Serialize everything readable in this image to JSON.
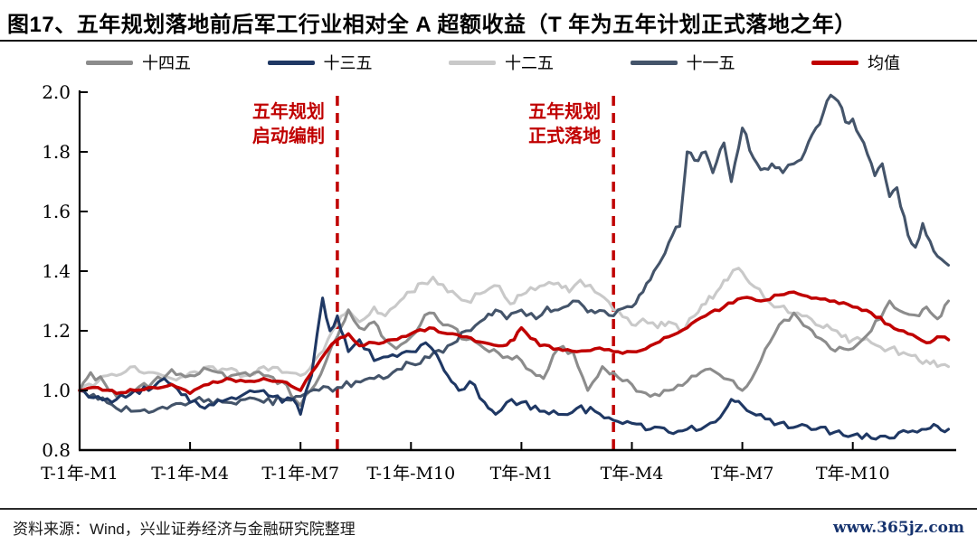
{
  "title": "图17、五年规划落地前后军工行业相对全 A 超额收益（T 年为五年计划正式落地之年）",
  "footer": {
    "source": "资料来源：Wind，兴业证券经济与金融研究院整理",
    "site": "www.365jz.com"
  },
  "legend": [
    {
      "label": "十四五",
      "color": "#8c8c8c"
    },
    {
      "label": "十三五",
      "color": "#1f3864"
    },
    {
      "label": "十二五",
      "color": "#c9c9c9"
    },
    {
      "label": "十一五",
      "color": "#44546a"
    },
    {
      "label": "均值",
      "color": "#c00000"
    }
  ],
  "chart_data": {
    "type": "line",
    "title": "",
    "xlabel": "",
    "ylabel": "",
    "ylim": [
      0.8,
      2.0
    ],
    "yticks": [
      "0.8",
      "1.0",
      "1.2",
      "1.4",
      "1.6",
      "1.8",
      "2.0"
    ],
    "x_unit": "month index: 1 = T-1年-M1, 13 = T年-M1, data spans ~24 months",
    "xticks": [
      {
        "m": 1,
        "label": "T-1年-M1"
      },
      {
        "m": 4,
        "label": "T-1年-M4"
      },
      {
        "m": 7,
        "label": "T-1年-M7"
      },
      {
        "m": 10,
        "label": "T-1年-M10"
      },
      {
        "m": 13,
        "label": "T年-M1"
      },
      {
        "m": 16,
        "label": "T年-M4"
      },
      {
        "m": 19,
        "label": "T年-M7"
      },
      {
        "m": 22,
        "label": "T年-M10"
      }
    ],
    "grid": false,
    "legend_position": "top",
    "event_lines": [
      {
        "month": 8.0,
        "color": "#c00000",
        "style": "dashed",
        "lines": [
          "五年规划",
          "启动编制"
        ]
      },
      {
        "month": 15.5,
        "color": "#c00000",
        "style": "dashed",
        "lines": [
          "五年规划",
          "正式落地"
        ]
      }
    ],
    "series": [
      {
        "name": "十二五",
        "key": "series-12th-5yp",
        "color": "#c9c9c9",
        "points": [
          [
            1,
            1.0
          ],
          [
            1.5,
            1.03
          ],
          [
            2,
            1.05
          ],
          [
            2.5,
            1.08
          ],
          [
            3,
            1.06
          ],
          [
            3.5,
            1.04
          ],
          [
            4,
            1.06
          ],
          [
            4.5,
            1.08
          ],
          [
            5,
            1.07
          ],
          [
            5.5,
            1.05
          ],
          [
            6,
            1.08
          ],
          [
            6.5,
            1.06
          ],
          [
            7,
            1.05
          ],
          [
            7.5,
            1.12
          ],
          [
            8,
            1.22
          ],
          [
            8.3,
            1.27
          ],
          [
            8.6,
            1.23
          ],
          [
            9,
            1.28
          ],
          [
            9.3,
            1.25
          ],
          [
            9.7,
            1.3
          ],
          [
            10,
            1.33
          ],
          [
            10.3,
            1.36
          ],
          [
            10.6,
            1.38
          ],
          [
            11,
            1.33
          ],
          [
            11.5,
            1.3
          ],
          [
            12,
            1.33
          ],
          [
            12.4,
            1.35
          ],
          [
            12.7,
            1.29
          ],
          [
            13,
            1.32
          ],
          [
            13.5,
            1.35
          ],
          [
            14,
            1.36
          ],
          [
            14.3,
            1.33
          ],
          [
            14.6,
            1.37
          ],
          [
            15,
            1.33
          ],
          [
            15.5,
            1.27
          ],
          [
            16,
            1.22
          ],
          [
            16.3,
            1.24
          ],
          [
            16.7,
            1.21
          ],
          [
            17,
            1.23
          ],
          [
            17.3,
            1.2
          ],
          [
            17.7,
            1.25
          ],
          [
            18,
            1.29
          ],
          [
            18.3,
            1.33
          ],
          [
            18.6,
            1.37
          ],
          [
            18.9,
            1.41
          ],
          [
            19.2,
            1.36
          ],
          [
            19.6,
            1.31
          ],
          [
            20,
            1.28
          ],
          [
            20.5,
            1.26
          ],
          [
            21,
            1.22
          ],
          [
            21.3,
            1.22
          ],
          [
            21.7,
            1.18
          ],
          [
            22,
            1.17
          ],
          [
            22.5,
            1.16
          ],
          [
            23,
            1.14
          ],
          [
            23.5,
            1.12
          ],
          [
            23.8,
            1.1
          ],
          [
            24,
            1.1
          ],
          [
            24.3,
            1.08
          ],
          [
            24.6,
            1.08
          ]
        ]
      },
      {
        "name": "十四五",
        "key": "series-14th-5yp",
        "color": "#8c8c8c",
        "points": [
          [
            1,
            1.0
          ],
          [
            1.3,
            1.06
          ],
          [
            1.7,
            1.02
          ],
          [
            2,
            0.98
          ],
          [
            2.5,
            1.0
          ],
          [
            3,
            1.03
          ],
          [
            3.5,
            1.07
          ],
          [
            4,
            1.05
          ],
          [
            4.5,
            1.07
          ],
          [
            5,
            1.04
          ],
          [
            5.5,
            1.06
          ],
          [
            6,
            1.05
          ],
          [
            6.5,
            1.03
          ],
          [
            7,
            0.95
          ],
          [
            7.4,
            1.02
          ],
          [
            7.7,
            1.1
          ],
          [
            8,
            1.18
          ],
          [
            8.3,
            1.27
          ],
          [
            8.6,
            1.21
          ],
          [
            9,
            1.23
          ],
          [
            9.3,
            1.17
          ],
          [
            9.6,
            1.14
          ],
          [
            10,
            1.18
          ],
          [
            10.5,
            1.26
          ],
          [
            11,
            1.22
          ],
          [
            11.5,
            1.17
          ],
          [
            12,
            1.14
          ],
          [
            12.5,
            1.11
          ],
          [
            13,
            1.1
          ],
          [
            13.4,
            1.05
          ],
          [
            13.6,
            1.04
          ],
          [
            14,
            1.14
          ],
          [
            14.4,
            1.13
          ],
          [
            14.8,
            1.0
          ],
          [
            15.2,
            1.08
          ],
          [
            15.5,
            1.06
          ],
          [
            16,
            1.02
          ],
          [
            16.5,
            0.98
          ],
          [
            17,
            1.0
          ],
          [
            17.5,
            1.03
          ],
          [
            18,
            1.07
          ],
          [
            18.5,
            1.04
          ],
          [
            19,
            1.0
          ],
          [
            19.5,
            1.1
          ],
          [
            20,
            1.22
          ],
          [
            20.4,
            1.26
          ],
          [
            20.8,
            1.21
          ],
          [
            21,
            1.18
          ],
          [
            21.4,
            1.14
          ],
          [
            22,
            1.14
          ],
          [
            22.5,
            1.2
          ],
          [
            23,
            1.3
          ],
          [
            23.4,
            1.26
          ],
          [
            23.8,
            1.25
          ],
          [
            24,
            1.28
          ],
          [
            24.3,
            1.24
          ],
          [
            24.6,
            1.3
          ]
        ]
      },
      {
        "name": "十一五",
        "key": "series-11th-5yp",
        "color": "#44546a",
        "points": [
          [
            1,
            1.0
          ],
          [
            1.5,
            0.97
          ],
          [
            2,
            0.94
          ],
          [
            2.4,
            0.93
          ],
          [
            3,
            0.93
          ],
          [
            3.5,
            0.95
          ],
          [
            4,
            0.96
          ],
          [
            4.5,
            0.97
          ],
          [
            5,
            0.96
          ],
          [
            5.5,
            0.97
          ],
          [
            6,
            0.96
          ],
          [
            6.5,
            0.97
          ],
          [
            7,
            0.98
          ],
          [
            7.5,
            1.0
          ],
          [
            8,
            1.01
          ],
          [
            8.5,
            1.03
          ],
          [
            9,
            1.04
          ],
          [
            9.5,
            1.06
          ],
          [
            10,
            1.09
          ],
          [
            10.5,
            1.11
          ],
          [
            11,
            1.15
          ],
          [
            11.5,
            1.2
          ],
          [
            12,
            1.24
          ],
          [
            12.3,
            1.27
          ],
          [
            12.6,
            1.24
          ],
          [
            13,
            1.27
          ],
          [
            13.4,
            1.24
          ],
          [
            13.7,
            1.28
          ],
          [
            14,
            1.27
          ],
          [
            14.4,
            1.3
          ],
          [
            14.7,
            1.28
          ],
          [
            15,
            1.26
          ],
          [
            15.5,
            1.25
          ],
          [
            16,
            1.28
          ],
          [
            16.3,
            1.33
          ],
          [
            16.6,
            1.4
          ],
          [
            16.9,
            1.46
          ],
          [
            17.1,
            1.52
          ],
          [
            17.3,
            1.55
          ],
          [
            17.5,
            1.8
          ],
          [
            17.8,
            1.77
          ],
          [
            18,
            1.8
          ],
          [
            18.2,
            1.73
          ],
          [
            18.5,
            1.83
          ],
          [
            18.7,
            1.7
          ],
          [
            19,
            1.88
          ],
          [
            19.3,
            1.78
          ],
          [
            19.5,
            1.74
          ],
          [
            19.8,
            1.76
          ],
          [
            20.1,
            1.73
          ],
          [
            20.4,
            1.76
          ],
          [
            20.7,
            1.8
          ],
          [
            21,
            1.88
          ],
          [
            21.2,
            1.93
          ],
          [
            21.4,
            1.99
          ],
          [
            21.6,
            1.97
          ],
          [
            21.8,
            1.9
          ],
          [
            22,
            1.91
          ],
          [
            22.3,
            1.83
          ],
          [
            22.6,
            1.72
          ],
          [
            22.8,
            1.76
          ],
          [
            23,
            1.65
          ],
          [
            23.2,
            1.68
          ],
          [
            23.5,
            1.52
          ],
          [
            23.7,
            1.48
          ],
          [
            23.9,
            1.56
          ],
          [
            24.1,
            1.5
          ],
          [
            24.3,
            1.45
          ],
          [
            24.6,
            1.42
          ]
        ]
      },
      {
        "name": "十三五",
        "key": "series-13th-5yp",
        "color": "#1f3864",
        "points": [
          [
            1,
            1.0
          ],
          [
            1.5,
            0.98
          ],
          [
            2,
            0.97
          ],
          [
            2.5,
            1.0
          ],
          [
            3,
            1.01
          ],
          [
            3.3,
            1.04
          ],
          [
            4,
            0.96
          ],
          [
            4.4,
            0.94
          ],
          [
            5,
            0.97
          ],
          [
            5.5,
            0.99
          ],
          [
            6,
            1.0
          ],
          [
            6.5,
            0.96
          ],
          [
            6.8,
            0.97
          ],
          [
            7,
            0.92
          ],
          [
            7.3,
            1.05
          ],
          [
            7.6,
            1.31
          ],
          [
            7.8,
            1.2
          ],
          [
            8,
            1.25
          ],
          [
            8.3,
            1.13
          ],
          [
            8.6,
            1.17
          ],
          [
            9,
            1.1
          ],
          [
            9.5,
            1.12
          ],
          [
            10,
            1.13
          ],
          [
            10.4,
            1.16
          ],
          [
            10.7,
            1.12
          ],
          [
            11,
            1.05
          ],
          [
            11.3,
            1.0
          ],
          [
            11.6,
            1.03
          ],
          [
            12,
            0.96
          ],
          [
            12.3,
            0.92
          ],
          [
            12.6,
            0.96
          ],
          [
            13,
            0.96
          ],
          [
            13.5,
            0.93
          ],
          [
            14,
            0.92
          ],
          [
            14.5,
            0.94
          ],
          [
            15,
            0.93
          ],
          [
            15.5,
            0.9
          ],
          [
            16,
            0.89
          ],
          [
            16.5,
            0.87
          ],
          [
            17,
            0.86
          ],
          [
            17.5,
            0.87
          ],
          [
            18,
            0.88
          ],
          [
            18.4,
            0.91
          ],
          [
            18.7,
            0.97
          ],
          [
            19,
            0.95
          ],
          [
            19.5,
            0.92
          ],
          [
            20,
            0.89
          ],
          [
            20.5,
            0.88
          ],
          [
            21,
            0.87
          ],
          [
            21.5,
            0.86
          ],
          [
            22,
            0.85
          ],
          [
            22.5,
            0.84
          ],
          [
            23,
            0.84
          ],
          [
            23.5,
            0.86
          ],
          [
            24,
            0.87
          ],
          [
            24.3,
            0.88
          ],
          [
            24.6,
            0.87
          ]
        ]
      },
      {
        "name": "均值",
        "key": "series-mean",
        "color": "#c00000",
        "points": [
          [
            1,
            1.0
          ],
          [
            1.5,
            1.01
          ],
          [
            2,
            0.99
          ],
          [
            2.5,
            1.0
          ],
          [
            3,
            1.01
          ],
          [
            3.5,
            1.02
          ],
          [
            4,
            0.99
          ],
          [
            4.5,
            1.02
          ],
          [
            5,
            1.04
          ],
          [
            5.5,
            1.03
          ],
          [
            6,
            1.04
          ],
          [
            6.5,
            1.03
          ],
          [
            7,
            1.0
          ],
          [
            7.3,
            1.06
          ],
          [
            7.7,
            1.13
          ],
          [
            8,
            1.17
          ],
          [
            8.3,
            1.19
          ],
          [
            8.6,
            1.15
          ],
          [
            9,
            1.16
          ],
          [
            9.5,
            1.17
          ],
          [
            10,
            1.19
          ],
          [
            10.5,
            1.21
          ],
          [
            11,
            1.19
          ],
          [
            11.5,
            1.18
          ],
          [
            12,
            1.16
          ],
          [
            12.5,
            1.15
          ],
          [
            12.8,
            1.17
          ],
          [
            13,
            1.21
          ],
          [
            13.5,
            1.15
          ],
          [
            14,
            1.14
          ],
          [
            14.5,
            1.13
          ],
          [
            15,
            1.14
          ],
          [
            15.5,
            1.13
          ],
          [
            16,
            1.13
          ],
          [
            16.5,
            1.15
          ],
          [
            17,
            1.18
          ],
          [
            17.5,
            1.21
          ],
          [
            18,
            1.25
          ],
          [
            18.5,
            1.28
          ],
          [
            19,
            1.31
          ],
          [
            19.5,
            1.3
          ],
          [
            20,
            1.32
          ],
          [
            20.4,
            1.33
          ],
          [
            21,
            1.31
          ],
          [
            21.5,
            1.3
          ],
          [
            22,
            1.28
          ],
          [
            22.5,
            1.26
          ],
          [
            23,
            1.22
          ],
          [
            23.5,
            1.19
          ],
          [
            24,
            1.16
          ],
          [
            24.3,
            1.18
          ],
          [
            24.6,
            1.17
          ]
        ]
      }
    ]
  }
}
